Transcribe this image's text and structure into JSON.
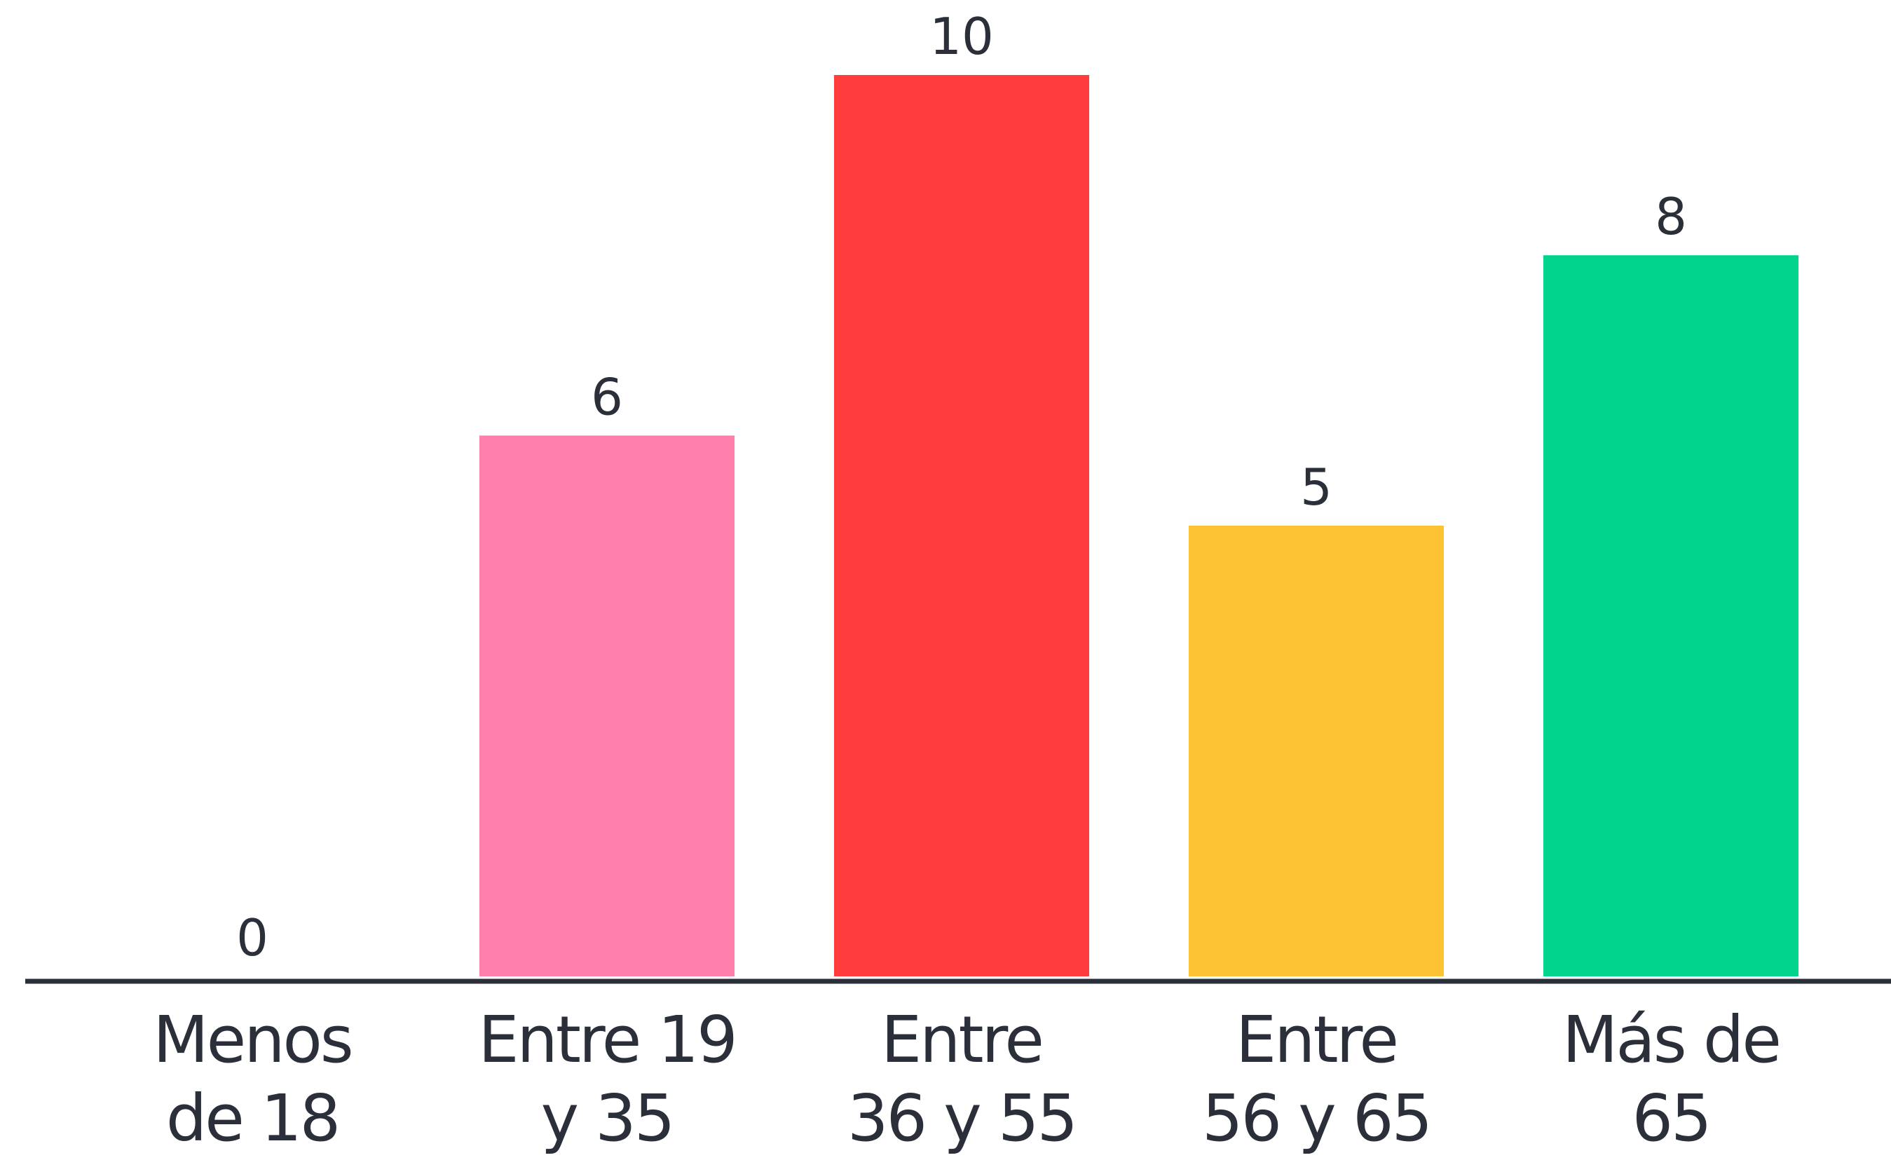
{
  "chart_data": {
    "type": "bar",
    "categories": [
      [
        "Menos",
        "de 18"
      ],
      [
        "Entre 19",
        "y 35"
      ],
      [
        "Entre",
        "36 y 55"
      ],
      [
        "Entre",
        "56 y 65"
      ],
      [
        "Más de",
        "65"
      ]
    ],
    "values": [
      0,
      6,
      10,
      5,
      8
    ],
    "value_labels": [
      "0",
      "6",
      "10",
      "5",
      "8"
    ],
    "colors": [
      "#ff7eab",
      "#ff7eab",
      "#ff3d3d",
      "#fdc234",
      "#00d48c"
    ],
    "title": "",
    "xlabel": "",
    "ylabel": "",
    "ylim": [
      0,
      10
    ],
    "grid": false,
    "legend": "none",
    "axis_color": "#2b2f3a",
    "text_color": "#2b2f3a"
  }
}
